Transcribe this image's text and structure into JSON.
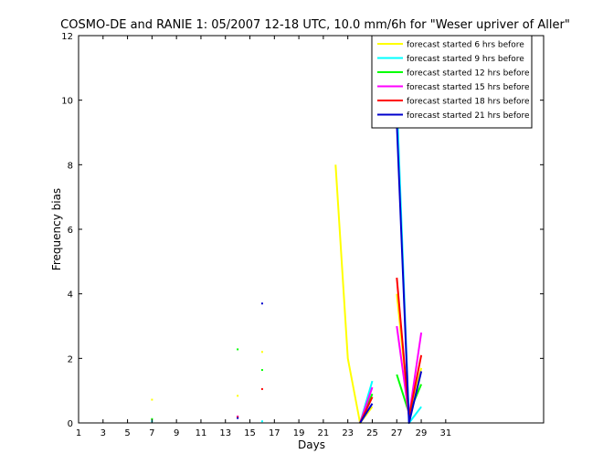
{
  "chart_data": {
    "type": "line",
    "title": "COSMO-DE and RANIE 1: 05/2007 12-18 UTC, 10.0 mm/6h for \"Weser upriver of Aller\"",
    "xlabel": "Days",
    "ylabel": "Frequency bias",
    "xlim": [
      1,
      39
    ],
    "ylim": [
      0,
      12
    ],
    "xticks": [
      1,
      3,
      5,
      7,
      9,
      11,
      13,
      15,
      17,
      19,
      21,
      23,
      25,
      27,
      29,
      31
    ],
    "yticks": [
      0,
      2,
      4,
      6,
      8,
      10,
      12
    ],
    "grid": false,
    "legend_position": "top-right",
    "series": [
      {
        "name": "forecast started 6 hrs before",
        "color": "#ffff00",
        "segments": [
          [
            [
              7,
              0.72
            ]
          ],
          [
            [
              14,
              0.84
            ]
          ],
          [
            [
              16,
              2.2
            ]
          ],
          [
            [
              22,
              8.0
            ],
            [
              23,
              2.0
            ],
            [
              24,
              0.0
            ],
            [
              25,
              0.5
            ]
          ],
          [
            [
              27,
              4.0
            ],
            [
              28,
              0.3
            ],
            [
              29,
              1.7
            ]
          ]
        ]
      },
      {
        "name": "forecast started 9 hrs before",
        "color": "#00ffff",
        "segments": [
          [
            [
              7,
              0.05
            ]
          ],
          [
            [
              16,
              0.05
            ]
          ],
          [
            [
              24,
              0.0
            ],
            [
              25,
              1.3
            ]
          ],
          [
            [
              27,
              10.05
            ],
            [
              28,
              0.0
            ],
            [
              29,
              0.5
            ]
          ]
        ]
      },
      {
        "name": "forecast started 12 hrs before",
        "color": "#00ff00",
        "segments": [
          [
            [
              7,
              0.12
            ]
          ],
          [
            [
              14,
              2.28
            ]
          ],
          [
            [
              16,
              1.64
            ]
          ],
          [
            [
              24,
              0.0
            ],
            [
              25,
              0.9
            ]
          ],
          [
            [
              27,
              1.5
            ],
            [
              28,
              0.3
            ],
            [
              29,
              1.2
            ]
          ]
        ]
      },
      {
        "name": "forecast started 15 hrs before",
        "color": "#ff00ff",
        "segments": [
          [
            [
              14,
              0.2
            ]
          ],
          [
            [
              24,
              0.0
            ],
            [
              25,
              1.1
            ]
          ],
          [
            [
              27,
              3.0
            ],
            [
              28,
              0.2
            ],
            [
              29,
              2.8
            ]
          ]
        ]
      },
      {
        "name": "forecast started 18 hrs before",
        "color": "#ff0000",
        "segments": [
          [
            [
              14,
              0.18
            ]
          ],
          [
            [
              16,
              1.05
            ]
          ],
          [
            [
              24,
              0.0
            ],
            [
              25,
              0.8
            ]
          ],
          [
            [
              27,
              4.5
            ],
            [
              28,
              0.2
            ],
            [
              29,
              2.1
            ]
          ]
        ]
      },
      {
        "name": "forecast started 21 hrs before",
        "color": "#0000cc",
        "segments": [
          [
            [
              14,
              0.15
            ]
          ],
          [
            [
              16,
              3.7
            ]
          ],
          [
            [
              24,
              0.0
            ],
            [
              25,
              0.6
            ]
          ],
          [
            [
              27,
              9.3
            ],
            [
              28,
              0.0
            ],
            [
              29,
              1.6
            ]
          ]
        ]
      }
    ]
  }
}
